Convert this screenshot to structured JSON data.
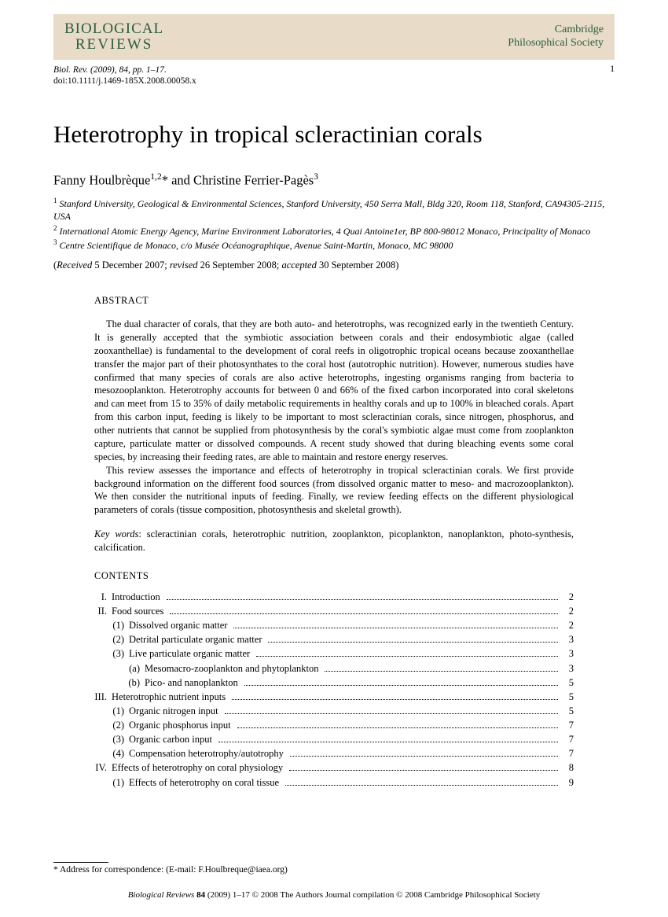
{
  "header": {
    "logo_top": "BIOLOGICAL",
    "logo_bottom": "REVIEWS",
    "society_top": "Cambridge",
    "society_bottom": "Philosophical Society"
  },
  "meta": {
    "citation_line1": "Biol. Rev. (2009), 84, pp. 1–17.",
    "citation_line2": "doi:10.1111/j.1469-185X.2008.00058.x",
    "page_number": "1"
  },
  "title": "Heterotrophy in tropical scleractinian corals",
  "authors_html": "Fanny Houlbrèque<sup>1,2</sup>* and Christine Ferrier-Pagès<sup>3</sup>",
  "affiliations": [
    "Stanford University, Geological & Environmental Sciences, Stanford University, 450 Serra Mall, Bldg 320, Room 118, Stanford, CA94305-2115, USA",
    "International Atomic Energy Agency, Marine Environment Laboratories, 4 Quai Antoine1er, BP 800-98012 Monaco, Principality of Monaco",
    "Centre Scientifique de Monaco, c/o Musée Océanographique, Avenue Saint-Martin, Monaco, MC 98000"
  ],
  "dates": "(Received 5 December 2007; revised 26 September 2008; accepted 30 September 2008)",
  "abstract": {
    "heading": "ABSTRACT",
    "paragraphs": [
      "The dual character of corals, that they are both auto- and heterotrophs, was recognized early in the twentieth Century. It is generally accepted that the symbiotic association between corals and their endosymbiotic algae (called zooxanthellae) is fundamental to the development of coral reefs in oligotrophic tropical oceans because zooxanthellae transfer the major part of their photosynthates to the coral host (autotrophic nutrition). However, numerous studies have confirmed that many species of corals are also active heterotrophs, ingesting organisms ranging from bacteria to mesozooplankton. Heterotrophy accounts for between 0 and 66% of the fixed carbon incorporated into coral skeletons and can meet from 15 to 35% of daily metabolic requirements in healthy corals and up to 100% in bleached corals. Apart from this carbon input, feeding is likely to be important to most scleractinian corals, since nitrogen, phosphorus, and other nutrients that cannot be supplied from photosynthesis by the coral's symbiotic algae must come from zooplankton capture, particulate matter or dissolved compounds. A recent study showed that during bleaching events some coral species, by increasing their feeding rates, are able to maintain and restore energy reserves.",
      "This review assesses the importance and effects of heterotrophy in tropical scleractinian corals. We first provide background information on the different food sources (from dissolved organic matter to meso- and macrozooplankton). We then consider the nutritional inputs of feeding. Finally, we review feeding effects on the different physiological parameters of corals (tissue composition, photosynthesis and skeletal growth)."
    ]
  },
  "keywords": {
    "label": "Key words",
    "text": ": scleractinian corals, heterotrophic nutrition, zooplankton, picoplankton, nanoplankton, photo-synthesis, calcification."
  },
  "contents_heading": "CONTENTS",
  "toc": [
    {
      "level": 1,
      "num": "I.",
      "label": "Introduction",
      "page": "2"
    },
    {
      "level": 1,
      "num": "II.",
      "label": "Food sources",
      "page": "2"
    },
    {
      "level": 2,
      "num": "(1)",
      "label": "Dissolved organic matter",
      "page": "2"
    },
    {
      "level": 2,
      "num": "(2)",
      "label": "Detrital particulate organic matter",
      "page": "3"
    },
    {
      "level": 2,
      "num": "(3)",
      "label": "Live particulate organic matter",
      "page": "3"
    },
    {
      "level": 3,
      "num": "(a)",
      "label": "Mesomacro-zooplankton and phytoplankton",
      "page": "3"
    },
    {
      "level": 3,
      "num": "(b)",
      "label": "Pico- and nanoplankton",
      "page": "5"
    },
    {
      "level": 1,
      "num": "III.",
      "label": "Heterotrophic nutrient inputs",
      "page": "5"
    },
    {
      "level": 2,
      "num": "(1)",
      "label": "Organic nitrogen input",
      "page": "5"
    },
    {
      "level": 2,
      "num": "(2)",
      "label": "Organic phosphorus input",
      "page": "7"
    },
    {
      "level": 2,
      "num": "(3)",
      "label": "Organic carbon input",
      "page": "7"
    },
    {
      "level": 2,
      "num": "(4)",
      "label": "Compensation heterotrophy/autotrophy",
      "page": "7"
    },
    {
      "level": 1,
      "num": "IV.",
      "label": "Effects of heterotrophy on coral physiology",
      "page": "8"
    },
    {
      "level": 2,
      "num": "(1)",
      "label": "Effects of heterotrophy on coral tissue",
      "page": "9"
    }
  ],
  "correspondence": "* Address for correspondence: (E-mail: F.Houlbreque@iaea.org)",
  "footer": "Biological Reviews 84 (2009) 1–17 © 2008 The Authors Journal compilation © 2008 Cambridge Philosophical Society"
}
